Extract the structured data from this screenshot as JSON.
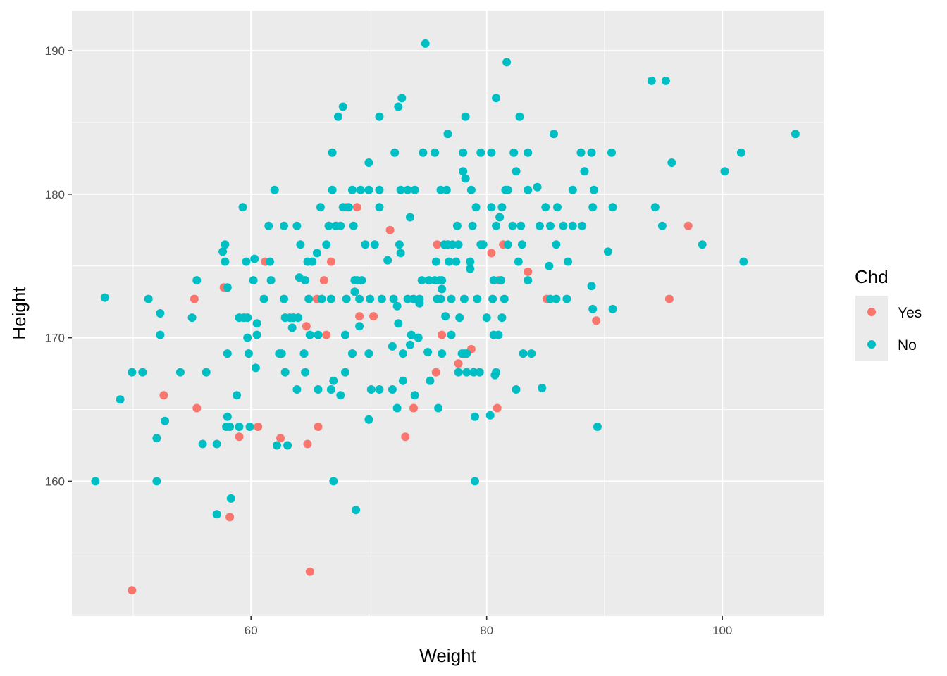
{
  "chart_data": {
    "type": "scatter",
    "title": "",
    "xlabel": "Weight",
    "ylabel": "Height",
    "xlim": [
      44.8,
      108.6
    ],
    "ylim": [
      150.6,
      192.8
    ],
    "x_ticks": [
      60,
      80,
      100
    ],
    "y_ticks": [
      160,
      170,
      180,
      190
    ],
    "grid": true,
    "legend": {
      "title": "Chd",
      "placement": "right",
      "entries": [
        {
          "label": "Yes",
          "color": "#F8766D"
        },
        {
          "label": "No",
          "color": "#00BFC4"
        }
      ]
    },
    "series": [
      {
        "name": "Yes",
        "color": "#F8766D",
        "points": [
          [
            49.9,
            152.4
          ],
          [
            52.6,
            166.0
          ],
          [
            55.2,
            172.7
          ],
          [
            55.4,
            165.1
          ],
          [
            57.7,
            173.5
          ],
          [
            58.2,
            157.5
          ],
          [
            59.0,
            163.1
          ],
          [
            60.6,
            163.8
          ],
          [
            61.2,
            175.3
          ],
          [
            62.5,
            163.0
          ],
          [
            64.7,
            170.8
          ],
          [
            64.8,
            162.6
          ],
          [
            65.0,
            153.7
          ],
          [
            65.6,
            172.7
          ],
          [
            65.7,
            163.8
          ],
          [
            66.2,
            174.0
          ],
          [
            66.4,
            170.2
          ],
          [
            66.6,
            177.8
          ],
          [
            66.8,
            175.3
          ],
          [
            68.1,
            179.1
          ],
          [
            68.6,
            168.9
          ],
          [
            69.0,
            179.1
          ],
          [
            69.2,
            171.5
          ],
          [
            70.4,
            171.5
          ],
          [
            71.8,
            177.5
          ],
          [
            73.1,
            163.1
          ],
          [
            73.8,
            165.1
          ],
          [
            75.7,
            167.6
          ],
          [
            75.8,
            176.5
          ],
          [
            76.2,
            170.2
          ],
          [
            77.6,
            168.2
          ],
          [
            78.7,
            169.2
          ],
          [
            80.4,
            175.9
          ],
          [
            80.9,
            165.1
          ],
          [
            81.0,
            174.0
          ],
          [
            81.4,
            176.5
          ],
          [
            83.5,
            174.6
          ],
          [
            85.1,
            172.7
          ],
          [
            89.3,
            171.2
          ],
          [
            95.5,
            172.7
          ],
          [
            97.1,
            177.8
          ],
          [
            81.2,
            174.0
          ]
        ]
      },
      {
        "name": "No",
        "color": "#00BFC4",
        "points": [
          [
            46.8,
            160.0
          ],
          [
            47.6,
            172.8
          ],
          [
            48.9,
            165.7
          ],
          [
            49.9,
            167.6
          ],
          [
            50.8,
            167.6
          ],
          [
            51.3,
            172.7
          ],
          [
            52.0,
            163.0
          ],
          [
            52.0,
            160.0
          ],
          [
            52.3,
            171.7
          ],
          [
            52.3,
            170.2
          ],
          [
            52.7,
            164.2
          ],
          [
            54.0,
            167.6
          ],
          [
            55.0,
            171.4
          ],
          [
            55.4,
            174.0
          ],
          [
            55.9,
            162.6
          ],
          [
            56.2,
            167.6
          ],
          [
            57.1,
            157.7
          ],
          [
            57.1,
            162.6
          ],
          [
            57.6,
            176.0
          ],
          [
            57.8,
            176.5
          ],
          [
            57.8,
            175.3
          ],
          [
            58.0,
            173.5
          ],
          [
            57.9,
            163.8
          ],
          [
            58.0,
            168.9
          ],
          [
            58.0,
            164.5
          ],
          [
            58.2,
            163.8
          ],
          [
            58.3,
            158.8
          ],
          [
            58.8,
            166.0
          ],
          [
            59.0,
            163.8
          ],
          [
            59.0,
            171.4
          ],
          [
            59.3,
            179.1
          ],
          [
            59.4,
            171.4
          ],
          [
            59.6,
            175.3
          ],
          [
            59.7,
            171.4
          ],
          [
            59.7,
            170.0
          ],
          [
            59.8,
            168.9
          ],
          [
            59.9,
            163.8
          ],
          [
            60.2,
            174.0
          ],
          [
            60.3,
            175.5
          ],
          [
            60.4,
            167.9
          ],
          [
            60.5,
            171.0
          ],
          [
            60.5,
            170.2
          ],
          [
            61.1,
            172.7
          ],
          [
            61.5,
            177.8
          ],
          [
            61.6,
            175.3
          ],
          [
            61.7,
            174.0
          ],
          [
            62.0,
            180.3
          ],
          [
            62.2,
            162.5
          ],
          [
            62.4,
            168.9
          ],
          [
            62.6,
            168.9
          ],
          [
            62.8,
            177.8
          ],
          [
            62.8,
            172.7
          ],
          [
            62.9,
            171.4
          ],
          [
            62.9,
            167.6
          ],
          [
            63.1,
            162.5
          ],
          [
            63.3,
            171.4
          ],
          [
            63.5,
            170.7
          ],
          [
            63.6,
            171.4
          ],
          [
            63.9,
            177.8
          ],
          [
            63.9,
            166.4
          ],
          [
            64.0,
            171.4
          ],
          [
            64.1,
            174.2
          ],
          [
            64.2,
            176.5
          ],
          [
            64.5,
            168.9
          ],
          [
            64.6,
            167.6
          ],
          [
            64.6,
            174.0
          ],
          [
            64.8,
            175.3
          ],
          [
            64.9,
            172.7
          ],
          [
            65.0,
            170.2
          ],
          [
            65.2,
            175.3
          ],
          [
            65.6,
            175.9
          ],
          [
            65.7,
            170.2
          ],
          [
            65.7,
            166.4
          ],
          [
            65.9,
            179.1
          ],
          [
            66.0,
            172.7
          ],
          [
            66.4,
            176.5
          ],
          [
            66.6,
            177.8
          ],
          [
            66.8,
            172.7
          ],
          [
            66.8,
            166.4
          ],
          [
            66.9,
            182.9
          ],
          [
            66.9,
            180.3
          ],
          [
            67.0,
            167.0
          ],
          [
            67.0,
            160.0
          ],
          [
            67.2,
            177.8
          ],
          [
            67.4,
            185.4
          ],
          [
            67.6,
            166.0
          ],
          [
            67.6,
            177.8
          ],
          [
            67.8,
            179.1
          ],
          [
            67.8,
            186.1
          ],
          [
            68.0,
            170.2
          ],
          [
            68.0,
            167.6
          ],
          [
            68.1,
            172.7
          ],
          [
            68.3,
            179.1
          ],
          [
            68.6,
            168.9
          ],
          [
            68.6,
            180.3
          ],
          [
            68.7,
            177.8
          ],
          [
            68.8,
            174.0
          ],
          [
            68.8,
            173.2
          ],
          [
            68.9,
            158.0
          ],
          [
            69.0,
            174.0
          ],
          [
            69.2,
            172.7
          ],
          [
            69.2,
            170.8
          ],
          [
            69.3,
            180.3
          ],
          [
            69.4,
            174.0
          ],
          [
            69.7,
            176.5
          ],
          [
            70.0,
            180.3
          ],
          [
            70.0,
            182.2
          ],
          [
            70.0,
            168.9
          ],
          [
            70.0,
            164.3
          ],
          [
            70.1,
            172.7
          ],
          [
            70.2,
            166.4
          ],
          [
            70.5,
            176.5
          ],
          [
            70.9,
            166.4
          ],
          [
            70.9,
            185.4
          ],
          [
            70.9,
            180.3
          ],
          [
            70.9,
            179.1
          ],
          [
            71.1,
            172.7
          ],
          [
            71.6,
            175.4
          ],
          [
            72.0,
            166.4
          ],
          [
            72.0,
            169.4
          ],
          [
            72.1,
            172.7
          ],
          [
            72.2,
            182.9
          ],
          [
            72.5,
            186.1
          ],
          [
            72.6,
            176.5
          ],
          [
            72.4,
            172.2
          ],
          [
            72.4,
            165.1
          ],
          [
            72.5,
            171.0
          ],
          [
            72.7,
            180.3
          ],
          [
            72.7,
            175.9
          ],
          [
            72.8,
            186.7
          ],
          [
            72.9,
            167.0
          ],
          [
            72.9,
            168.9
          ],
          [
            73.3,
            172.7
          ],
          [
            73.3,
            180.3
          ],
          [
            73.5,
            178.4
          ],
          [
            73.5,
            169.5
          ],
          [
            73.6,
            170.2
          ],
          [
            73.8,
            172.7
          ],
          [
            73.9,
            180.3
          ],
          [
            73.9,
            166.0
          ],
          [
            74.2,
            170.0
          ],
          [
            74.3,
            172.7
          ],
          [
            74.3,
            172.4
          ],
          [
            74.5,
            174.0
          ],
          [
            74.6,
            182.9
          ],
          [
            74.8,
            190.5
          ],
          [
            75.0,
            169.0
          ],
          [
            75.1,
            174.0
          ],
          [
            75.2,
            167.0
          ],
          [
            75.6,
            182.9
          ],
          [
            75.6,
            174.0
          ],
          [
            75.7,
            175.3
          ],
          [
            75.8,
            172.7
          ],
          [
            75.9,
            165.1
          ],
          [
            76.0,
            174.0
          ],
          [
            76.1,
            172.7
          ],
          [
            76.1,
            180.3
          ],
          [
            76.2,
            174.0
          ],
          [
            76.2,
            173.4
          ],
          [
            76.2,
            168.9
          ],
          [
            76.4,
            176.5
          ],
          [
            76.5,
            171.5
          ],
          [
            76.6,
            180.3
          ],
          [
            76.7,
            184.2
          ],
          [
            76.7,
            176.5
          ],
          [
            76.8,
            175.3
          ],
          [
            77.0,
            170.2
          ],
          [
            77.0,
            172.7
          ],
          [
            77.1,
            176.5
          ],
          [
            77.4,
            175.3
          ],
          [
            77.5,
            177.8
          ],
          [
            77.6,
            176.5
          ],
          [
            77.6,
            167.6
          ],
          [
            77.7,
            171.4
          ],
          [
            77.9,
            168.9
          ],
          [
            78.0,
            181.6
          ],
          [
            78.0,
            182.9
          ],
          [
            78.1,
            168.9
          ],
          [
            78.1,
            172.7
          ],
          [
            78.2,
            185.4
          ],
          [
            78.2,
            181.1
          ],
          [
            78.3,
            167.6
          ],
          [
            78.3,
            168.9
          ],
          [
            78.6,
            174.8
          ],
          [
            78.6,
            175.3
          ],
          [
            78.7,
            180.3
          ],
          [
            78.8,
            177.8
          ],
          [
            78.9,
            167.6
          ],
          [
            79.0,
            164.5
          ],
          [
            79.0,
            160.0
          ],
          [
            79.1,
            179.1
          ],
          [
            79.2,
            172.7
          ],
          [
            79.4,
            167.6
          ],
          [
            79.5,
            182.9
          ],
          [
            79.5,
            176.5
          ],
          [
            79.7,
            176.5
          ],
          [
            80.0,
            171.4
          ],
          [
            80.3,
            164.6
          ],
          [
            80.4,
            179.1
          ],
          [
            80.4,
            182.9
          ],
          [
            80.5,
            172.7
          ],
          [
            80.6,
            170.2
          ],
          [
            80.6,
            174.0
          ],
          [
            80.7,
            167.4
          ],
          [
            80.8,
            186.7
          ],
          [
            80.8,
            177.8
          ],
          [
            80.8,
            167.6
          ],
          [
            81.0,
            170.2
          ],
          [
            81.1,
            178.4
          ],
          [
            81.2,
            174.0
          ],
          [
            81.3,
            179.1
          ],
          [
            81.3,
            171.4
          ],
          [
            81.5,
            172.7
          ],
          [
            81.6,
            180.3
          ],
          [
            81.7,
            189.2
          ],
          [
            81.8,
            176.5
          ],
          [
            81.8,
            180.3
          ],
          [
            82.2,
            177.8
          ],
          [
            82.3,
            182.9
          ],
          [
            82.5,
            181.6
          ],
          [
            82.5,
            166.4
          ],
          [
            82.7,
            175.3
          ],
          [
            82.8,
            185.4
          ],
          [
            82.9,
            177.8
          ],
          [
            83.0,
            176.5
          ],
          [
            83.1,
            168.9
          ],
          [
            83.5,
            182.9
          ],
          [
            83.5,
            174.0
          ],
          [
            83.5,
            180.3
          ],
          [
            83.8,
            168.9
          ],
          [
            84.3,
            180.5
          ],
          [
            84.5,
            177.8
          ],
          [
            84.7,
            166.5
          ],
          [
            85.0,
            179.1
          ],
          [
            85.3,
            175.0
          ],
          [
            85.4,
            172.7
          ],
          [
            85.4,
            177.8
          ],
          [
            85.7,
            184.2
          ],
          [
            85.9,
            176.5
          ],
          [
            85.9,
            172.7
          ],
          [
            86.0,
            179.1
          ],
          [
            86.5,
            177.8
          ],
          [
            86.8,
            172.7
          ],
          [
            86.9,
            175.3
          ],
          [
            87.3,
            180.3
          ],
          [
            87.3,
            177.8
          ],
          [
            88.0,
            182.9
          ],
          [
            88.1,
            177.8
          ],
          [
            88.3,
            181.6
          ],
          [
            88.9,
            182.9
          ],
          [
            89.0,
            179.1
          ],
          [
            88.9,
            173.6
          ],
          [
            89.0,
            172.0
          ],
          [
            89.1,
            180.3
          ],
          [
            89.4,
            163.8
          ],
          [
            90.3,
            176.0
          ],
          [
            90.6,
            182.9
          ],
          [
            90.7,
            179.1
          ],
          [
            90.7,
            172.0
          ],
          [
            94.0,
            187.9
          ],
          [
            94.3,
            179.1
          ],
          [
            94.9,
            177.8
          ],
          [
            95.2,
            187.9
          ],
          [
            95.7,
            182.2
          ],
          [
            98.3,
            176.5
          ],
          [
            100.2,
            181.6
          ],
          [
            101.6,
            182.9
          ],
          [
            101.8,
            175.3
          ],
          [
            106.2,
            184.2
          ]
        ]
      }
    ]
  }
}
